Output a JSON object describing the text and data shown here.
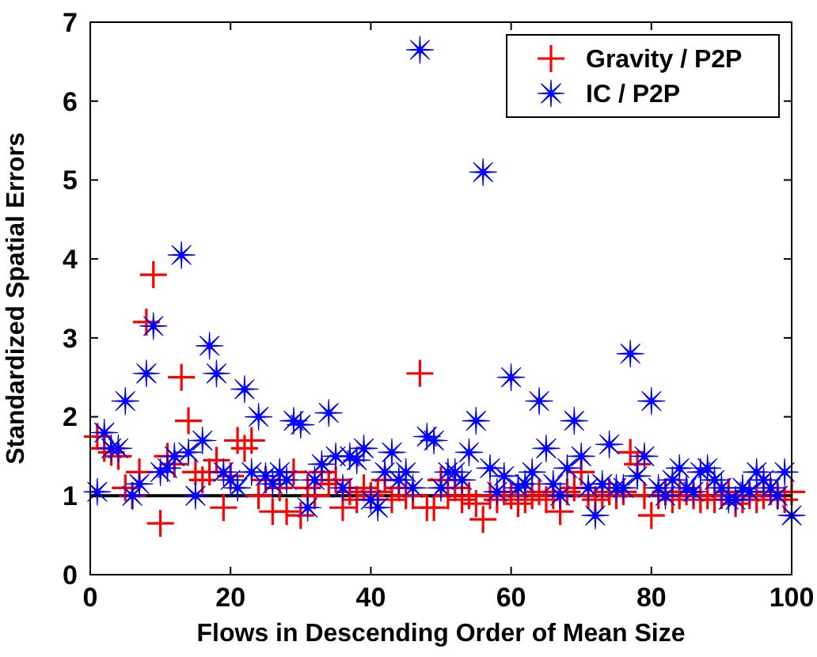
{
  "chart_data": {
    "type": "scatter",
    "xlabel": "Flows in Descending Order of Mean Size",
    "ylabel": "Standardized Spatial Errors",
    "x": [
      1,
      2,
      3,
      4,
      5,
      6,
      7,
      8,
      9,
      10,
      11,
      12,
      13,
      14,
      15,
      16,
      17,
      18,
      19,
      20,
      21,
      22,
      23,
      24,
      25,
      26,
      27,
      28,
      29,
      30,
      31,
      32,
      33,
      34,
      35,
      36,
      37,
      38,
      39,
      40,
      41,
      42,
      43,
      44,
      45,
      46,
      47,
      48,
      49,
      50,
      51,
      52,
      53,
      54,
      55,
      56,
      57,
      58,
      59,
      60,
      61,
      62,
      63,
      64,
      65,
      66,
      67,
      68,
      69,
      70,
      71,
      72,
      73,
      74,
      75,
      76,
      77,
      78,
      79,
      80,
      81,
      82,
      83,
      84,
      85,
      86,
      87,
      88,
      89,
      90,
      91,
      92,
      93,
      94,
      95,
      96,
      97,
      98,
      99,
      100
    ],
    "series": [
      {
        "name": "Gravity / P2P",
        "color": "#ff0000",
        "marker": "cross",
        "values": [
          1.75,
          1.6,
          1.55,
          1.5,
          1.1,
          1.0,
          1.3,
          3.2,
          3.8,
          0.65,
          1.5,
          1.4,
          2.5,
          1.95,
          1.3,
          1.2,
          1.3,
          1.45,
          0.85,
          1.25,
          1.7,
          1.6,
          1.7,
          1.0,
          1.2,
          0.8,
          1.1,
          0.8,
          1.3,
          0.75,
          1.1,
          1.0,
          1.3,
          1.15,
          1.2,
          0.85,
          1.05,
          0.95,
          1.1,
          1.0,
          1.05,
          1.2,
          0.95,
          1.1,
          1.0,
          1.0,
          2.55,
          0.85,
          0.85,
          1.2,
          1.0,
          1.1,
          0.95,
          1.0,
          0.9,
          0.7,
          1.0,
          0.95,
          1.05,
          1.0,
          0.9,
          0.95,
          1.0,
          1.05,
          0.95,
          1.0,
          0.8,
          1.05,
          1.1,
          1.3,
          1.0,
          0.95,
          1.0,
          1.05,
          1.0,
          1.05,
          1.55,
          1.4,
          1.0,
          0.75,
          1.0,
          1.05,
          0.95,
          1.0,
          1.05,
          1.0,
          0.95,
          1.0,
          0.95,
          1.0,
          1.05,
          0.9,
          0.95,
          1.0,
          0.95,
          1.0,
          1.05,
          1.0,
          0.95,
          1.05
        ]
      },
      {
        "name": "IC / P2P",
        "color": "#0000ff",
        "marker": "star",
        "values": [
          1.05,
          1.8,
          1.6,
          1.6,
          2.2,
          1.0,
          1.15,
          2.55,
          3.15,
          1.3,
          1.35,
          1.5,
          4.05,
          1.55,
          1.0,
          1.7,
          2.9,
          2.55,
          1.3,
          1.2,
          1.1,
          2.35,
          1.3,
          2.0,
          1.25,
          1.15,
          1.3,
          1.2,
          1.95,
          1.9,
          0.85,
          1.2,
          1.4,
          2.05,
          1.5,
          1.1,
          1.5,
          1.45,
          1.6,
          0.95,
          0.85,
          1.3,
          1.55,
          1.2,
          1.3,
          1.1,
          6.65,
          1.75,
          1.7,
          1.1,
          1.3,
          1.3,
          1.2,
          1.55,
          1.95,
          5.1,
          1.35,
          1.05,
          1.25,
          2.5,
          1.1,
          1.15,
          1.3,
          2.2,
          1.6,
          1.15,
          1.0,
          1.35,
          1.95,
          1.5,
          1.1,
          0.75,
          1.15,
          1.65,
          1.1,
          1.1,
          2.8,
          1.25,
          1.5,
          2.2,
          1.1,
          1.0,
          1.2,
          1.35,
          1.1,
          1.05,
          1.3,
          1.35,
          1.2,
          1.1,
          0.95,
          0.95,
          1.1,
          1.05,
          1.3,
          1.2,
          1.1,
          1.0,
          1.3,
          0.75
        ]
      }
    ],
    "ref_lines": [
      {
        "axis": "y",
        "value": 1,
        "color": "#000000"
      }
    ],
    "xlim": [
      0,
      100
    ],
    "xticks": [
      0,
      20,
      40,
      60,
      80,
      100
    ],
    "ylim": [
      0,
      7
    ],
    "yticks": [
      0,
      1,
      2,
      3,
      4,
      5,
      6,
      7
    ],
    "grid": false,
    "legend": "top right"
  }
}
